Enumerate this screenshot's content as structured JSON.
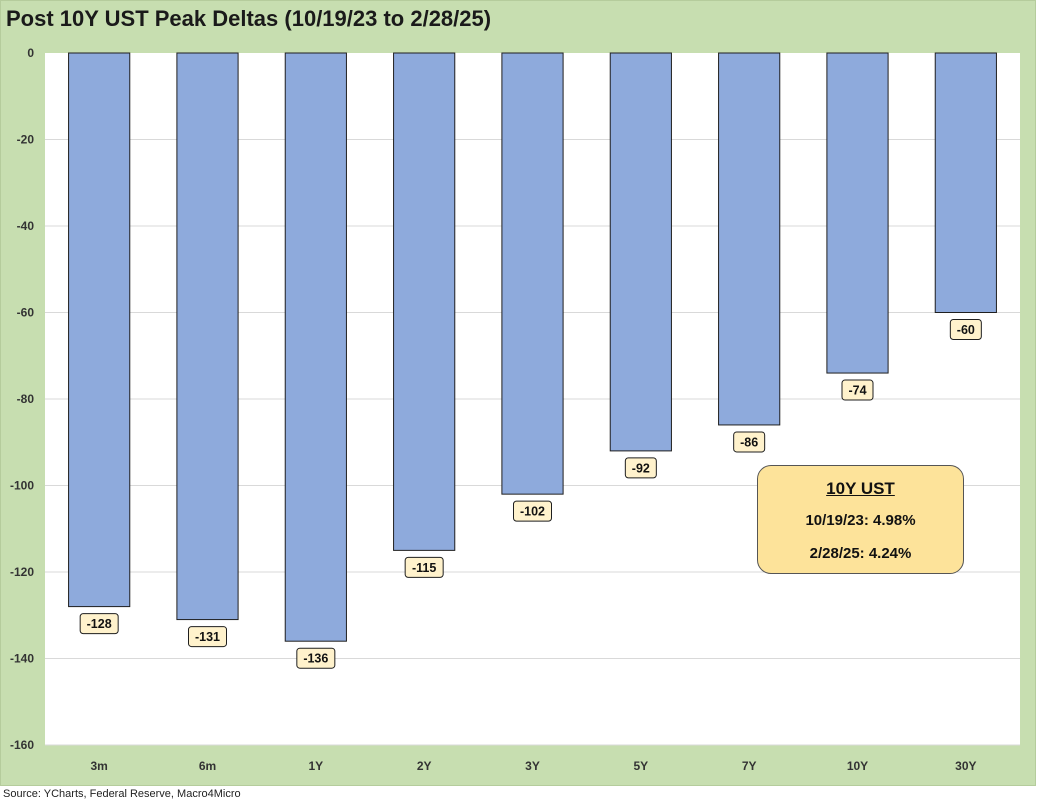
{
  "chart_data": {
    "type": "bar",
    "title": "Post 10Y UST Peak Deltas (10/19/23 to 2/28/25)",
    "categories": [
      "3m",
      "6m",
      "1Y",
      "2Y",
      "3Y",
      "5Y",
      "7Y",
      "10Y",
      "30Y"
    ],
    "series": [
      {
        "values": [
          -128,
          -131,
          -136,
          -115,
          -102,
          -92,
          -86,
          -74,
          -60
        ]
      }
    ],
    "ylim": [
      -160,
      0
    ],
    "yticks": [
      0,
      -20,
      -40,
      -60,
      -80,
      -100,
      -120,
      -140,
      -160
    ],
    "xlabel": "",
    "ylabel": "",
    "grid": true,
    "legend": "none",
    "bar_color": "#8eaadc",
    "label_color": "#fff2cc",
    "annotation": {
      "title": "10Y UST",
      "line1": "10/19/23: 4.98%",
      "line2": "2/28/25: 4.24%"
    }
  },
  "colors": {
    "frame": "#c7deb0",
    "plot": "#ffffff",
    "bar": "#8eaadc",
    "data_label_bg": "#fff2cc",
    "annotation_bg": "#fde39a"
  },
  "source": "Source: YCharts, Federal Reserve, Macro4Micro"
}
